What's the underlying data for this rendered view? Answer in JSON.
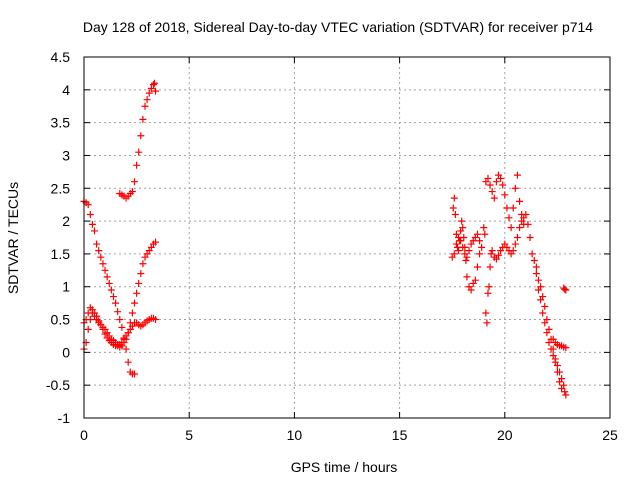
{
  "chart_data": {
    "type": "scatter",
    "title": "Day 128 of 2018, Sidereal Day-to-day VTEC variation (SDTVAR) for receiver p714",
    "xlabel": "GPS time / hours",
    "ylabel": "SDTVAR / TECUs",
    "xlim": [
      0,
      25
    ],
    "ylim": [
      -1,
      4.5
    ],
    "xticks": [
      0,
      5,
      10,
      15,
      20,
      25
    ],
    "xtick_labels": [
      "0",
      "5",
      "10",
      "15",
      "20",
      "25"
    ],
    "yticks": [
      -1,
      -0.5,
      0,
      0.5,
      1,
      1.5,
      2,
      2.5,
      3,
      3.5,
      4,
      4.5
    ],
    "ytick_labels": [
      "-1",
      "-0.5",
      "0",
      "0.5",
      "1",
      "1.5",
      "2",
      "2.5",
      "3",
      "3.5",
      "4",
      "4.5"
    ],
    "grid": true,
    "marker": "+",
    "color": "#ff0000",
    "series": [
      {
        "name": "SDTVAR",
        "points": [
          [
            0.0,
            2.3
          ],
          [
            0.1,
            2.28
          ],
          [
            0.2,
            2.25
          ],
          [
            0.3,
            2.1
          ],
          [
            0.4,
            1.95
          ],
          [
            0.5,
            1.85
          ],
          [
            0.6,
            1.65
          ],
          [
            0.7,
            1.55
          ],
          [
            0.8,
            1.45
          ],
          [
            0.9,
            1.35
          ],
          [
            1.0,
            1.25
          ],
          [
            1.1,
            1.15
          ],
          [
            1.2,
            1.05
          ],
          [
            1.3,
            0.95
          ],
          [
            1.4,
            0.85
          ],
          [
            1.5,
            0.75
          ],
          [
            1.6,
            0.62
          ],
          [
            1.7,
            0.5
          ],
          [
            1.8,
            0.38
          ],
          [
            1.9,
            0.22
          ],
          [
            2.0,
            0.05
          ],
          [
            2.1,
            -0.15
          ],
          [
            2.2,
            -0.3
          ],
          [
            2.3,
            -0.33
          ],
          [
            2.4,
            -0.33
          ],
          [
            0.0,
            0.45
          ],
          [
            0.1,
            0.5
          ],
          [
            0.2,
            0.6
          ],
          [
            0.3,
            0.68
          ],
          [
            0.4,
            0.65
          ],
          [
            0.5,
            0.6
          ],
          [
            0.6,
            0.55
          ],
          [
            0.7,
            0.48
          ],
          [
            0.8,
            0.42
          ],
          [
            0.9,
            0.35
          ],
          [
            1.0,
            0.28
          ],
          [
            1.1,
            0.22
          ],
          [
            1.2,
            0.18
          ],
          [
            1.3,
            0.15
          ],
          [
            1.4,
            0.12
          ],
          [
            1.5,
            0.1
          ],
          [
            1.6,
            0.1
          ],
          [
            1.7,
            0.12
          ],
          [
            1.8,
            0.15
          ],
          [
            1.9,
            0.2
          ],
          [
            2.0,
            0.25
          ],
          [
            2.1,
            0.3
          ],
          [
            2.2,
            0.35
          ],
          [
            2.3,
            0.4
          ],
          [
            2.4,
            0.45
          ],
          [
            2.5,
            0.45
          ],
          [
            2.6,
            0.42
          ],
          [
            2.7,
            0.4
          ],
          [
            2.8,
            0.42
          ],
          [
            2.9,
            0.45
          ],
          [
            3.0,
            0.48
          ],
          [
            3.1,
            0.5
          ],
          [
            3.2,
            0.52
          ],
          [
            3.3,
            0.52
          ],
          [
            3.4,
            0.5
          ],
          [
            0.0,
            0.05
          ],
          [
            0.1,
            0.15
          ],
          [
            0.2,
            0.35
          ],
          [
            0.3,
            0.5
          ],
          [
            0.4,
            0.6
          ],
          [
            0.5,
            0.55
          ],
          [
            0.6,
            0.5
          ],
          [
            0.7,
            0.45
          ],
          [
            0.8,
            0.42
          ],
          [
            0.9,
            0.38
          ],
          [
            1.0,
            0.35
          ],
          [
            1.1,
            0.3
          ],
          [
            1.2,
            0.25
          ],
          [
            1.3,
            0.2
          ],
          [
            1.4,
            0.18
          ],
          [
            1.5,
            0.15
          ],
          [
            1.6,
            0.12
          ],
          [
            1.7,
            0.08
          ],
          [
            1.8,
            0.1
          ],
          [
            1.9,
            0.15
          ],
          [
            2.0,
            0.2
          ],
          [
            2.1,
            0.3
          ],
          [
            2.2,
            0.45
          ],
          [
            2.3,
            0.6
          ],
          [
            2.4,
            0.75
          ],
          [
            2.5,
            0.9
          ],
          [
            2.6,
            1.05
          ],
          [
            2.7,
            1.2
          ],
          [
            2.8,
            1.35
          ],
          [
            2.9,
            1.45
          ],
          [
            3.0,
            1.5
          ],
          [
            3.1,
            1.55
          ],
          [
            3.2,
            1.6
          ],
          [
            3.3,
            1.65
          ],
          [
            3.4,
            1.68
          ],
          [
            1.7,
            2.42
          ],
          [
            1.8,
            2.4
          ],
          [
            1.9,
            2.38
          ],
          [
            2.0,
            2.35
          ],
          [
            2.1,
            2.38
          ],
          [
            2.2,
            2.42
          ],
          [
            2.3,
            2.45
          ],
          [
            2.4,
            2.6
          ],
          [
            2.5,
            2.85
          ],
          [
            2.6,
            3.05
          ],
          [
            2.7,
            3.3
          ],
          [
            2.8,
            3.55
          ],
          [
            2.9,
            3.75
          ],
          [
            3.0,
            3.85
          ],
          [
            3.1,
            3.95
          ],
          [
            3.2,
            4.02
          ],
          [
            3.3,
            4.08
          ],
          [
            3.35,
            4.1
          ],
          [
            3.4,
            3.98
          ],
          [
            17.5,
            1.45
          ],
          [
            17.55,
            2.2
          ],
          [
            17.6,
            2.35
          ],
          [
            17.65,
            2.1
          ],
          [
            17.7,
            1.8
          ],
          [
            17.75,
            1.6
          ],
          [
            17.8,
            1.55
          ],
          [
            17.85,
            1.7
          ],
          [
            17.9,
            1.85
          ],
          [
            17.95,
            2.0
          ],
          [
            18.0,
            1.9
          ],
          [
            18.05,
            1.75
          ],
          [
            18.1,
            1.6
          ],
          [
            18.15,
            1.4
          ],
          [
            18.2,
            1.15
          ],
          [
            18.3,
            1.0
          ],
          [
            18.4,
            0.95
          ],
          [
            18.5,
            1.05
          ],
          [
            18.6,
            1.1
          ],
          [
            18.7,
            1.3
          ],
          [
            18.8,
            1.5
          ],
          [
            18.9,
            1.6
          ],
          [
            19.0,
            1.9
          ],
          [
            19.05,
            1.8
          ],
          [
            19.1,
            0.6
          ],
          [
            19.15,
            0.45
          ],
          [
            19.2,
            0.9
          ],
          [
            19.25,
            1.0
          ],
          [
            19.3,
            1.3
          ],
          [
            19.35,
            1.5
          ],
          [
            19.4,
            1.55
          ],
          [
            19.5,
            1.45
          ],
          [
            19.6,
            1.42
          ],
          [
            19.7,
            1.48
          ],
          [
            19.8,
            1.55
          ],
          [
            19.9,
            1.6
          ],
          [
            20.0,
            1.65
          ],
          [
            20.1,
            1.6
          ],
          [
            20.2,
            1.55
          ],
          [
            20.3,
            1.5
          ],
          [
            20.4,
            1.55
          ],
          [
            20.5,
            1.65
          ],
          [
            20.6,
            1.75
          ],
          [
            20.7,
            1.9
          ],
          [
            20.8,
            2.0
          ],
          [
            20.9,
            2.05
          ],
          [
            21.0,
            2.1
          ],
          [
            21.1,
            1.95
          ],
          [
            21.2,
            1.75
          ],
          [
            19.1,
            2.6
          ],
          [
            19.2,
            2.65
          ],
          [
            19.3,
            2.55
          ],
          [
            19.4,
            2.45
          ],
          [
            19.5,
            2.35
          ],
          [
            19.6,
            2.6
          ],
          [
            19.7,
            2.7
          ],
          [
            19.8,
            2.65
          ],
          [
            19.9,
            2.55
          ],
          [
            20.0,
            2.4
          ],
          [
            20.1,
            2.2
          ],
          [
            20.2,
            2.05
          ],
          [
            20.3,
            1.9
          ],
          [
            20.4,
            2.2
          ],
          [
            20.5,
            2.5
          ],
          [
            20.6,
            2.7
          ],
          [
            20.7,
            2.3
          ],
          [
            20.8,
            2.1
          ],
          [
            20.9,
            1.95
          ],
          [
            17.6,
            1.5
          ],
          [
            17.7,
            1.65
          ],
          [
            17.8,
            1.75
          ],
          [
            17.9,
            1.7
          ],
          [
            18.0,
            1.6
          ],
          [
            18.1,
            1.5
          ],
          [
            18.2,
            1.45
          ],
          [
            18.3,
            1.55
          ],
          [
            18.4,
            1.65
          ],
          [
            18.5,
            1.7
          ],
          [
            18.6,
            1.75
          ],
          [
            18.7,
            1.8
          ],
          [
            18.8,
            1.7
          ],
          [
            21.3,
            1.5
          ],
          [
            21.4,
            1.4
          ],
          [
            21.5,
            1.3
          ],
          [
            21.6,
            1.1
          ],
          [
            21.7,
            1.0
          ],
          [
            21.8,
            0.85
          ],
          [
            21.9,
            0.7
          ],
          [
            22.0,
            0.5
          ],
          [
            22.1,
            0.35
          ],
          [
            22.2,
            0.2
          ],
          [
            22.3,
            0.05
          ],
          [
            22.4,
            -0.1
          ],
          [
            22.5,
            -0.2
          ],
          [
            22.6,
            -0.3
          ],
          [
            22.7,
            -0.4
          ],
          [
            22.8,
            -0.5
          ],
          [
            22.85,
            -0.6
          ],
          [
            22.9,
            -0.65
          ],
          [
            21.5,
            1.2
          ],
          [
            21.6,
            0.95
          ],
          [
            21.7,
            0.8
          ],
          [
            21.8,
            0.6
          ],
          [
            21.9,
            0.45
          ],
          [
            22.0,
            0.3
          ],
          [
            22.1,
            0.15
          ],
          [
            22.2,
            0.05
          ],
          [
            22.3,
            -0.05
          ],
          [
            22.4,
            -0.15
          ],
          [
            22.5,
            -0.3
          ],
          [
            22.6,
            -0.45
          ],
          [
            22.7,
            -0.55
          ],
          [
            22.3,
            0.2
          ],
          [
            22.4,
            0.15
          ],
          [
            22.5,
            0.12
          ],
          [
            22.6,
            0.1
          ],
          [
            22.7,
            0.1
          ],
          [
            22.8,
            0.08
          ],
          [
            22.9,
            0.07
          ],
          [
            22.8,
            0.98
          ],
          [
            22.85,
            0.96
          ],
          [
            22.9,
            0.95
          ]
        ]
      }
    ]
  }
}
